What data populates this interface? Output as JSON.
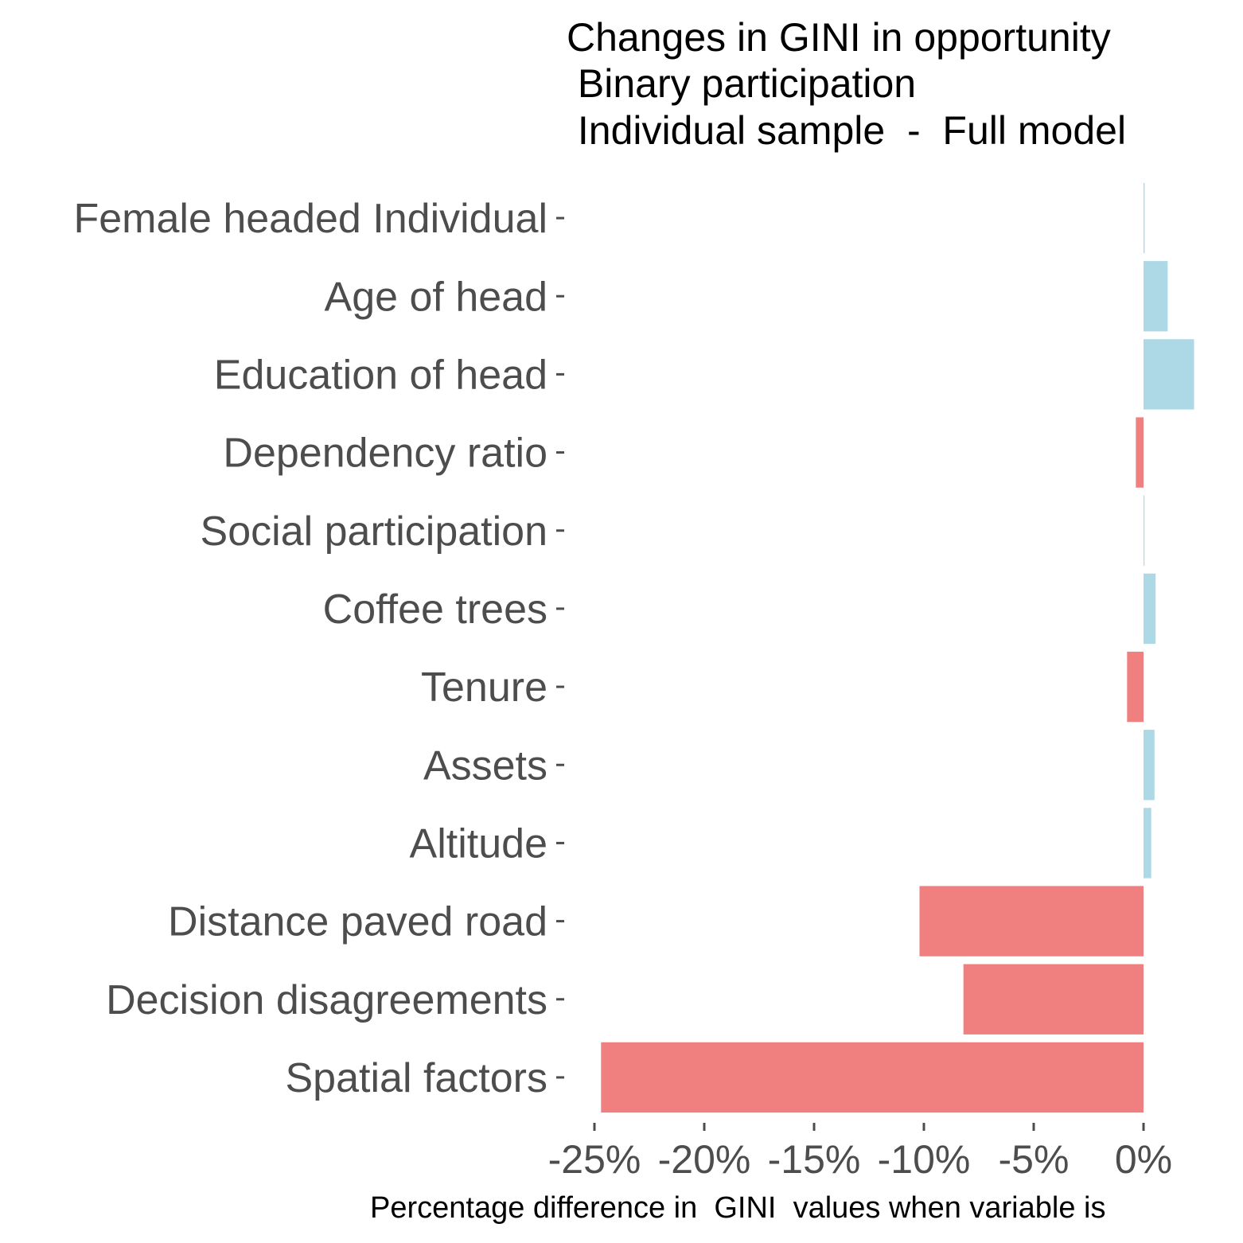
{
  "chart_data": {
    "type": "bar",
    "orientation": "horizontal",
    "title_lines": [
      "Changes in GINI in opportunity",
      " Binary participation",
      " Individual sample  -  Full model"
    ],
    "xlabel": "Percentage difference in  GINI  values when variable is",
    "ylabel": "",
    "categories": [
      "Female headed Individual",
      "Age of head",
      "Education of head",
      "Dependency ratio",
      "Social participation",
      "Coffee trees",
      "Tenure",
      "Assets",
      "Altitude",
      "Distance paved road",
      "Decision disagreements",
      "Spatial factors"
    ],
    "values": [
      0.05,
      1.1,
      2.3,
      -0.35,
      0.03,
      0.55,
      -0.75,
      0.5,
      0.35,
      -10.2,
      -8.2,
      -24.7
    ],
    "xlim": [
      -25.5,
      4.5
    ],
    "x_ticks": [
      -25,
      -20,
      -15,
      -10,
      -5,
      0
    ],
    "x_tick_labels": [
      "-25%",
      "-20%",
      "-15%",
      "-10%",
      "-5%",
      "0%"
    ],
    "grid": false,
    "legend": "none",
    "colors": {
      "positive": "#add8e6",
      "negative": "#f08080"
    }
  }
}
